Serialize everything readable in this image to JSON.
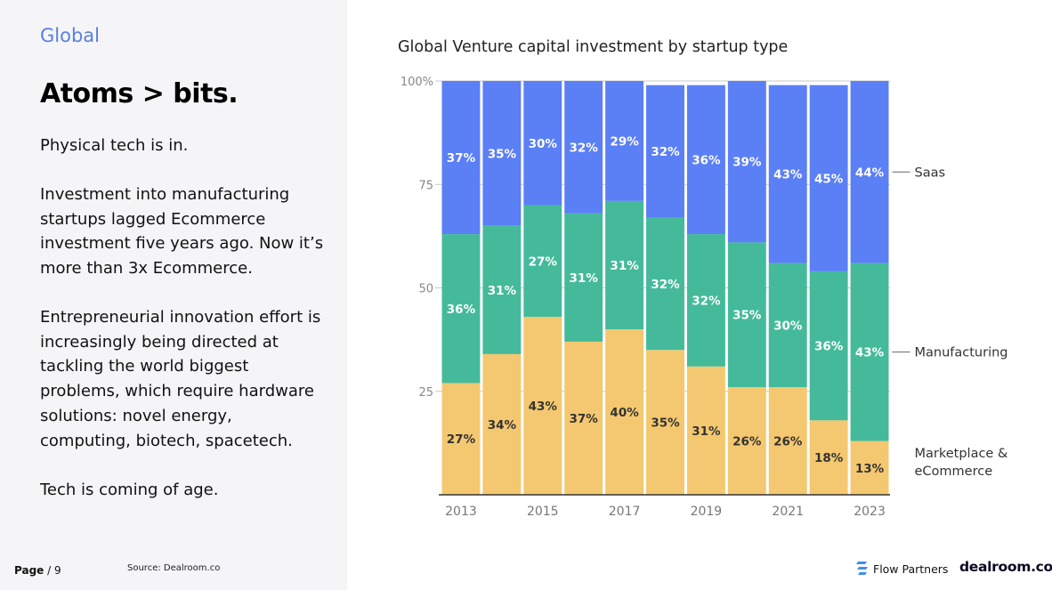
{
  "left": {
    "section_label": "Global",
    "headline": "Atoms > bits.",
    "paragraphs": [
      "Physical tech is in.",
      "Investment into manufacturing startups lagged Ecommerce investment five years ago. Now it’s more than 3x Ecommerce.",
      "Entrepreneurial innovation effort is increasingly being directed at tackling the world biggest problems, which require hardware solutions: novel energy, computing, biotech, spacetech.",
      "Tech is coming of age."
    ]
  },
  "footer": {
    "page_label": "Page",
    "page_number": "/ 9",
    "source": "Source: Dealroom.co"
  },
  "brands": {
    "flow_partners": "Flow Partners",
    "dealroom": "dealroom.co"
  },
  "colors": {
    "saas": "#5b7ff5",
    "manufacturing": "#45ba9b",
    "marketplace": "#f4c870",
    "accent": "#5a7fe0"
  },
  "chart_data": {
    "type": "bar",
    "stacked": true,
    "normalized_percent": true,
    "title": "Global Venture capital investment by startup type",
    "categories": [
      "2013",
      "2014",
      "2015",
      "2016",
      "2017",
      "2018",
      "2019",
      "2020",
      "2021",
      "2022",
      "2023"
    ],
    "x_tick_labels": [
      "2013",
      "2015",
      "2017",
      "2019",
      "2021",
      "2023"
    ],
    "y_ticks": [
      "100%",
      "75",
      "50",
      "25"
    ],
    "ylim": [
      0,
      100
    ],
    "legend_placement": "right",
    "series": [
      {
        "name": "Marketplace & eCommerce",
        "values": [
          27,
          34,
          43,
          37,
          40,
          35,
          31,
          26,
          26,
          18,
          13
        ]
      },
      {
        "name": "Manufacturing",
        "values": [
          36,
          31,
          27,
          31,
          31,
          32,
          32,
          35,
          30,
          36,
          43
        ]
      },
      {
        "name": "Saas",
        "values": [
          37,
          35,
          30,
          32,
          29,
          32,
          36,
          39,
          43,
          45,
          44
        ]
      }
    ],
    "legend_lines": {
      "Saas": [
        "Saas"
      ],
      "Manufacturing": [
        "Manufacturing"
      ],
      "Marketplace & eCommerce": [
        "Marketplace &",
        "eCommerce"
      ]
    }
  }
}
